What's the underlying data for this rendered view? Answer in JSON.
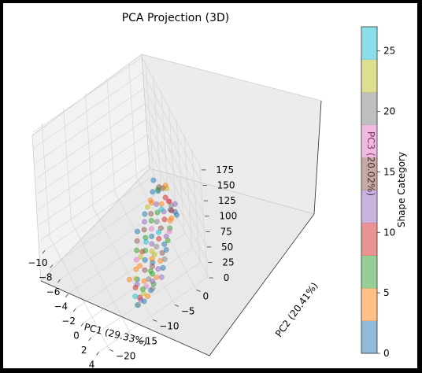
{
  "chart_data": {
    "type": "scatter",
    "projection": "3d",
    "title": "PCA Projection (3D)",
    "xlabel": "PC1 (29.33%)",
    "ylabel": "PC2 (20.41%)",
    "zlabel": "PC3 (20.02%)",
    "xlim": [
      -11,
      4.5
    ],
    "ylim": [
      -22,
      3
    ],
    "zlim": [
      -5,
      180
    ],
    "x_ticks": [
      "−10",
      "−8",
      "−6",
      "−4",
      "−2",
      "0",
      "2",
      "4"
    ],
    "y_ticks": [
      "−20",
      "−15",
      "−10",
      "−5",
      "0"
    ],
    "z_ticks": [
      "0",
      "25",
      "50",
      "75",
      "100",
      "125",
      "150",
      "175"
    ],
    "grid": true,
    "colorbar": {
      "label": "Shape Category",
      "ticks": [
        "0",
        "5",
        "10",
        "15",
        "20",
        "25"
      ],
      "range": [
        0,
        27
      ],
      "colormap": "tab10",
      "colors": [
        "#1f77b4",
        "#ff7f0e",
        "#2ca02c",
        "#d62728",
        "#9467bd",
        "#8c564b",
        "#e377c2",
        "#7f7f7f",
        "#bcbd22",
        "#17becf"
      ]
    },
    "point_alpha": 0.5,
    "points": [
      [
        -4.0,
        -1.5,
        80,
        0
      ],
      [
        -3.8,
        -2.0,
        66,
        2
      ],
      [
        -3.5,
        -1.0,
        66,
        1
      ],
      [
        -3.8,
        0.5,
        60,
        3
      ],
      [
        -4.2,
        -0.5,
        58,
        7
      ],
      [
        -4.5,
        0.0,
        56,
        14
      ],
      [
        -3.9,
        1.2,
        55,
        23
      ],
      [
        -3.6,
        -2.5,
        53,
        5
      ],
      [
        -3.2,
        -1.8,
        52,
        11
      ],
      [
        -3.0,
        -0.8,
        50,
        3
      ],
      [
        -2.8,
        0.6,
        50,
        18
      ],
      [
        -2.5,
        -2.2,
        49,
        8
      ],
      [
        -2.2,
        -1.0,
        48,
        13
      ],
      [
        -2.0,
        0.3,
        47,
        2
      ],
      [
        -1.8,
        -3.0,
        46,
        21
      ],
      [
        -1.5,
        -1.5,
        46,
        10
      ],
      [
        -1.2,
        -0.2,
        45,
        4
      ],
      [
        -1.0,
        -2.8,
        44,
        16
      ],
      [
        -0.8,
        -3.5,
        43,
        25
      ],
      [
        -0.5,
        -1.2,
        42,
        6
      ],
      [
        -0.2,
        -4.0,
        42,
        9
      ],
      [
        0.0,
        -2.5,
        41,
        12
      ],
      [
        0.3,
        -5.0,
        40,
        19
      ],
      [
        0.6,
        -3.5,
        40,
        1
      ],
      [
        0.9,
        -6.0,
        39,
        22
      ],
      [
        1.2,
        -4.5,
        38,
        15
      ],
      [
        1.5,
        -7.0,
        38,
        2
      ],
      [
        1.8,
        -5.5,
        37,
        5
      ],
      [
        2.1,
        -8.0,
        36,
        8
      ],
      [
        2.4,
        -6.5,
        36,
        11
      ],
      [
        2.7,
        -9.0,
        35,
        20
      ],
      [
        3.0,
        -7.5,
        34,
        3
      ],
      [
        3.2,
        -10.0,
        34,
        17
      ],
      [
        3.4,
        -8.5,
        33,
        7
      ],
      [
        3.6,
        -11.0,
        32,
        24
      ],
      [
        3.8,
        -9.5,
        32,
        0
      ],
      [
        4.0,
        -12.0,
        31,
        13
      ],
      [
        4.1,
        -10.5,
        31,
        4
      ],
      [
        4.2,
        -13.0,
        30,
        26
      ],
      [
        4.3,
        -11.5,
        30,
        2
      ],
      [
        -3.9,
        0.8,
        42,
        10
      ],
      [
        -3.1,
        1.0,
        44,
        9
      ],
      [
        -2.4,
        0.9,
        46,
        21
      ],
      [
        -1.7,
        1.1,
        43,
        2
      ],
      [
        -3.4,
        -3.0,
        40,
        14
      ],
      [
        -2.6,
        -3.6,
        41,
        6
      ],
      [
        -1.9,
        -4.2,
        39,
        18
      ],
      [
        -1.2,
        -4.8,
        38,
        1
      ],
      [
        -0.5,
        -5.4,
        37,
        11
      ],
      [
        0.2,
        -6.0,
        36,
        23
      ],
      [
        0.9,
        -6.6,
        35,
        3
      ],
      [
        1.6,
        -7.2,
        34,
        15
      ],
      [
        2.3,
        -7.8,
        33,
        8
      ],
      [
        3.0,
        -8.4,
        32,
        12
      ],
      [
        3.7,
        -9.0,
        31,
        19
      ],
      [
        -2.8,
        -5.0,
        18,
        8
      ],
      [
        -2.0,
        -6.5,
        12,
        10
      ],
      [
        -1.0,
        -8.0,
        8,
        3
      ],
      [
        0.0,
        -9.5,
        5,
        2
      ],
      [
        -0.6,
        -10.8,
        4,
        5
      ],
      [
        -3.3,
        -4.8,
        24,
        16
      ],
      [
        -1.4,
        -7.4,
        15,
        22
      ],
      [
        0.8,
        -10.2,
        10,
        12
      ],
      [
        -2.2,
        -1.5,
        54,
        26
      ],
      [
        -1.5,
        0.2,
        52,
        9
      ],
      [
        -0.8,
        -0.8,
        49,
        4
      ],
      [
        0.1,
        -1.8,
        47,
        17
      ],
      [
        0.8,
        -2.8,
        45,
        7
      ],
      [
        1.5,
        -3.8,
        43,
        0
      ],
      [
        2.2,
        -4.8,
        41,
        20
      ],
      [
        2.9,
        -5.8,
        40,
        1
      ],
      [
        3.6,
        -6.8,
        38,
        13
      ],
      [
        -4.3,
        -2.2,
        47,
        5
      ],
      [
        -4.0,
        -3.2,
        45,
        24
      ],
      [
        -3.6,
        -4.2,
        43,
        2
      ],
      [
        -2.9,
        -4.9,
        42,
        11
      ],
      [
        2.0,
        -9.5,
        26,
        3
      ],
      [
        2.8,
        -10.5,
        27,
        6
      ],
      [
        3.5,
        -11.8,
        28,
        10
      ],
      [
        4.2,
        -12.8,
        29,
        21
      ],
      [
        1.2,
        -8.6,
        30,
        14
      ],
      [
        0.4,
        -7.8,
        33,
        0
      ],
      [
        -0.4,
        -7.0,
        35,
        8
      ],
      [
        -1.1,
        -6.2,
        37,
        25
      ],
      [
        -4.6,
        1.5,
        50,
        3
      ],
      [
        -4.4,
        0.6,
        52,
        19
      ],
      [
        -2.0,
        1.4,
        51,
        12
      ],
      [
        -0.9,
        0.8,
        49,
        1
      ],
      [
        -3.2,
        -6.4,
        30,
        2
      ],
      [
        -2.4,
        -7.2,
        28,
        15
      ],
      [
        -1.6,
        -8.0,
        26,
        7
      ],
      [
        -0.8,
        -8.8,
        24,
        18
      ],
      [
        0.0,
        -9.6,
        22,
        4
      ],
      [
        0.8,
        -10.4,
        20,
        22
      ],
      [
        1.6,
        -11.2,
        19,
        9
      ],
      [
        2.4,
        -12.0,
        18,
        26
      ]
    ]
  }
}
